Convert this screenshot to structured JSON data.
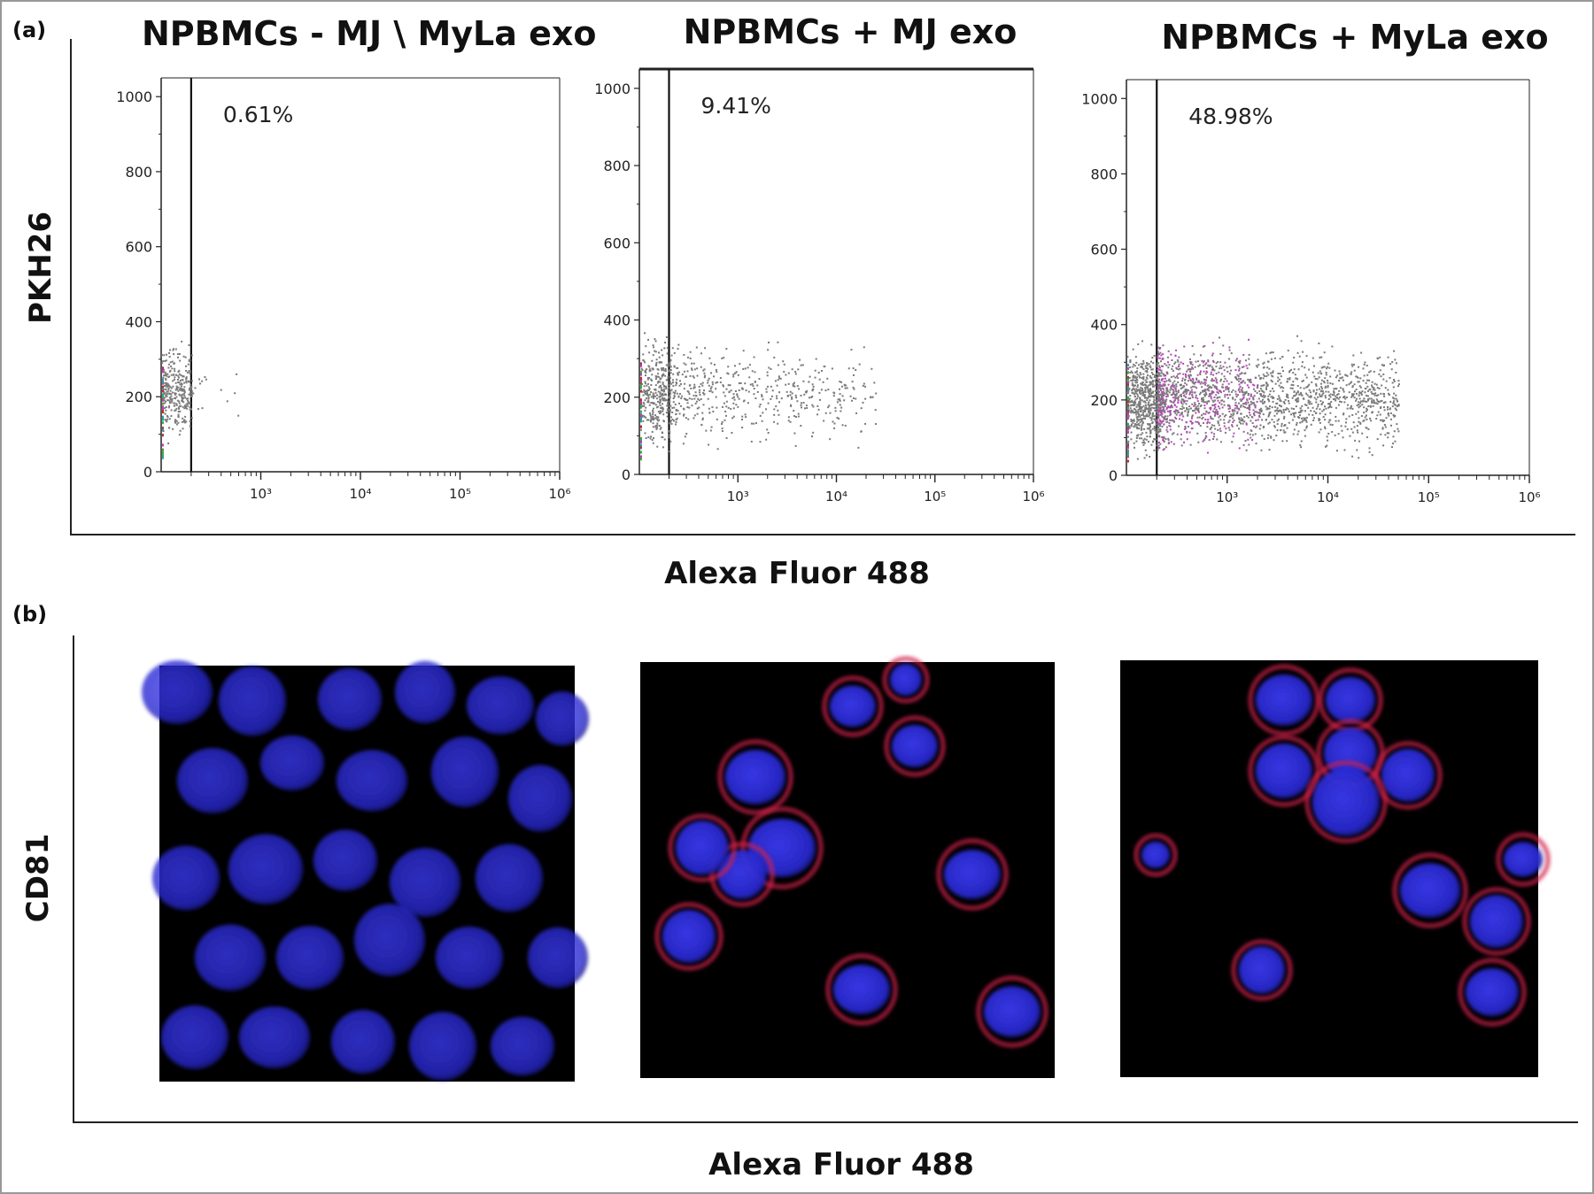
{
  "panel_a": {
    "label": "(a)",
    "y_axis_title": "PKH26",
    "x_axis_title": "Alexa Fluor 488"
  },
  "panel_b": {
    "label": "(b)",
    "y_axis_title": "CD81",
    "x_axis_title": "Alexa Fluor 488"
  },
  "colors": {
    "dots": "#7a7a7a",
    "magenta_dots": "#c040c0",
    "nucleus": "#2a2ad0",
    "membrane": "#d0204a"
  },
  "chart_data": [
    {
      "type": "scatter",
      "title": "NPBMCs - MJ \\ MyLa exo",
      "gate_percent": "0.61%",
      "xscale": "log",
      "xlim": [
        100,
        1000000
      ],
      "ylim": [
        0,
        1050
      ],
      "x_ticks": [
        1000,
        10000,
        100000,
        1000000
      ],
      "x_tick_labels": [
        "10³",
        "10⁴",
        "10⁵",
        "10⁶"
      ],
      "y_ticks": [
        0,
        200,
        400,
        600,
        800,
        1000
      ],
      "y_tick_labels": [
        "0",
        "200",
        "400",
        "600",
        "800",
        "1000"
      ],
      "gate_x": 200,
      "population": [
        {
          "x_range": [
            100,
            200
          ],
          "y_range": [
            60,
            380
          ],
          "count": 300
        },
        {
          "x_range": [
            200,
            600
          ],
          "y_range": [
            120,
            320
          ],
          "count": 14
        }
      ]
    },
    {
      "type": "scatter",
      "title": "NPBMCs + MJ exo",
      "gate_percent": "9.41%",
      "xscale": "log",
      "xlim": [
        100,
        1000000
      ],
      "ylim": [
        0,
        1050
      ],
      "x_ticks": [
        1000,
        10000,
        100000,
        1000000
      ],
      "x_tick_labels": [
        "10³",
        "10⁴",
        "10⁵",
        "10⁶"
      ],
      "y_ticks": [
        0,
        200,
        400,
        600,
        800,
        1000
      ],
      "y_tick_labels": [
        "0",
        "200",
        "400",
        "600",
        "800",
        "1000"
      ],
      "gate_x": 200,
      "population": [
        {
          "x_range": [
            100,
            200
          ],
          "y_range": [
            40,
            380
          ],
          "count": 320
        },
        {
          "x_range": [
            200,
            25000
          ],
          "y_range": [
            60,
            370
          ],
          "count": 520
        }
      ]
    },
    {
      "type": "scatter",
      "title": "NPBMCs + MyLa exo",
      "gate_percent": "48.98%",
      "xscale": "log",
      "xlim": [
        100,
        1000000
      ],
      "ylim": [
        0,
        1050
      ],
      "x_ticks": [
        1000,
        10000,
        100000,
        1000000
      ],
      "x_tick_labels": [
        "10³",
        "10⁴",
        "10⁵",
        "10⁶"
      ],
      "y_ticks": [
        0,
        200,
        400,
        600,
        800,
        1000
      ],
      "y_tick_labels": [
        "0",
        "200",
        "400",
        "600",
        "800",
        "1000"
      ],
      "gate_x": 200,
      "population": [
        {
          "x_range": [
            100,
            200
          ],
          "y_range": [
            20,
            380
          ],
          "count": 520
        },
        {
          "x_range": [
            200,
            50000
          ],
          "y_range": [
            30,
            380
          ],
          "count": 1900
        }
      ]
    }
  ],
  "micrographs": [
    {
      "name": "npbmc-control-micrograph",
      "membrane_stain": false
    },
    {
      "name": "npbmc-mj-exo-micrograph",
      "membrane_stain": true
    },
    {
      "name": "npbmc-myla-exo-micrograph",
      "membrane_stain": true
    }
  ]
}
